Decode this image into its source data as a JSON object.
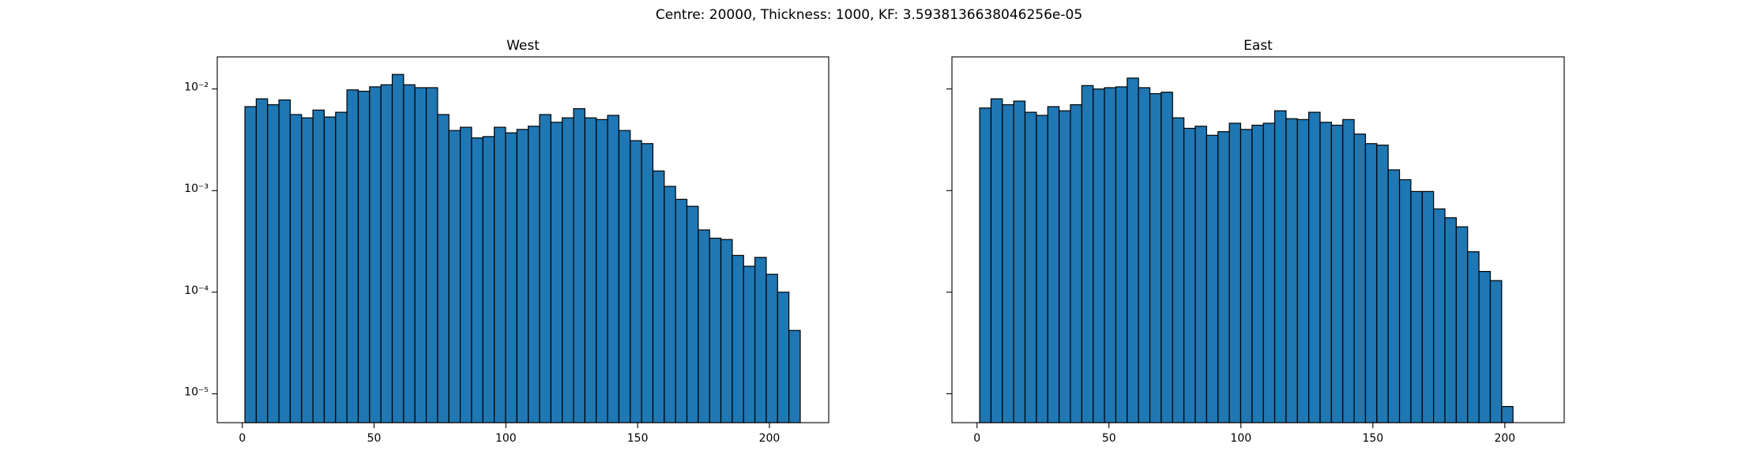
{
  "title": "Centre: 20000, Thickness: 1000, KF: 3.5938136638046256e-05",
  "chart_data": [
    {
      "type": "histogram",
      "title": "West",
      "color": "#1f77b4",
      "edgecolor": "#000000",
      "log_y": true,
      "bins": [
        1,
        5.3,
        9.6,
        13.9,
        18.2,
        22.5,
        26.8,
        31.1,
        35.4,
        39.7,
        44,
        48.3,
        52.6,
        56.9,
        61.2,
        65.5,
        69.8,
        74.1,
        78.4,
        82.7,
        87,
        91.3,
        95.6,
        99.9,
        104.2,
        108.5,
        112.8,
        117.1,
        121.4,
        125.7,
        130,
        134.3,
        138.6,
        142.9,
        147.2,
        151.5,
        155.8,
        160.1,
        164.4,
        168.7,
        173,
        177.3,
        181.6,
        185.9,
        190.2,
        194.5,
        198.8,
        203.1,
        207.4,
        211.7
      ],
      "values": [
        0.0067,
        0.008,
        0.007,
        0.0078,
        0.0056,
        0.0052,
        0.0062,
        0.0053,
        0.0059,
        0.0098,
        0.0095,
        0.0105,
        0.011,
        0.0139,
        0.011,
        0.0103,
        0.0103,
        0.0056,
        0.0039,
        0.0042,
        0.0033,
        0.0034,
        0.0042,
        0.0037,
        0.004,
        0.0043,
        0.0056,
        0.0047,
        0.0052,
        0.0064,
        0.0052,
        0.005,
        0.0055,
        0.0039,
        0.0031,
        0.0029,
        0.00156,
        0.0011,
        0.00082,
        0.0007,
        0.00041,
        0.00034,
        0.00033,
        0.00023,
        0.00018,
        0.00022,
        0.00015,
        0.0001,
        4.2e-05
      ],
      "xlim": [
        -9.5,
        222.5
      ],
      "xticks": [
        0,
        50,
        100,
        150,
        200
      ],
      "ylim": [
        5.2e-06,
        0.0207
      ],
      "yticks": [
        {
          "value": 1e-05,
          "label": "10⁻⁵"
        },
        {
          "value": 0.0001,
          "label": "10⁻⁴"
        },
        {
          "value": 0.001,
          "label": "10⁻³"
        },
        {
          "value": 0.01,
          "label": "10⁻²"
        }
      ]
    },
    {
      "type": "histogram",
      "title": "East",
      "color": "#1f77b4",
      "edgecolor": "#000000",
      "log_y": true,
      "bins": [
        1,
        5.3,
        9.6,
        13.9,
        18.2,
        22.5,
        26.8,
        31.1,
        35.4,
        39.7,
        44,
        48.3,
        52.6,
        56.9,
        61.2,
        65.5,
        69.8,
        74.1,
        78.4,
        82.7,
        87,
        91.3,
        95.6,
        99.9,
        104.2,
        108.5,
        112.8,
        117.1,
        121.4,
        125.7,
        130,
        134.3,
        138.6,
        142.9,
        147.2,
        151.5,
        155.8,
        160.1,
        164.4,
        168.7,
        173,
        177.3,
        181.6,
        185.9,
        190.2,
        194.5,
        198.8,
        203.1
      ],
      "values": [
        0.0065,
        0.008,
        0.007,
        0.0076,
        0.0059,
        0.0055,
        0.0067,
        0.0061,
        0.007,
        0.0108,
        0.01,
        0.0103,
        0.0105,
        0.0128,
        0.0103,
        0.009,
        0.0093,
        0.0052,
        0.0041,
        0.0043,
        0.0035,
        0.0038,
        0.0046,
        0.004,
        0.0044,
        0.0046,
        0.0061,
        0.0051,
        0.005,
        0.0059,
        0.0047,
        0.0044,
        0.005,
        0.0036,
        0.0029,
        0.0028,
        0.0016,
        0.00128,
        0.00098,
        0.00098,
        0.00066,
        0.00054,
        0.00044,
        0.00025,
        0.00016,
        0.00013,
        7.5e-06
      ],
      "xlim": [
        -9.5,
        222.5
      ],
      "xticks": [
        0,
        50,
        100,
        150,
        200
      ],
      "ylim": [
        5.2e-06,
        0.0207
      ]
    }
  ]
}
